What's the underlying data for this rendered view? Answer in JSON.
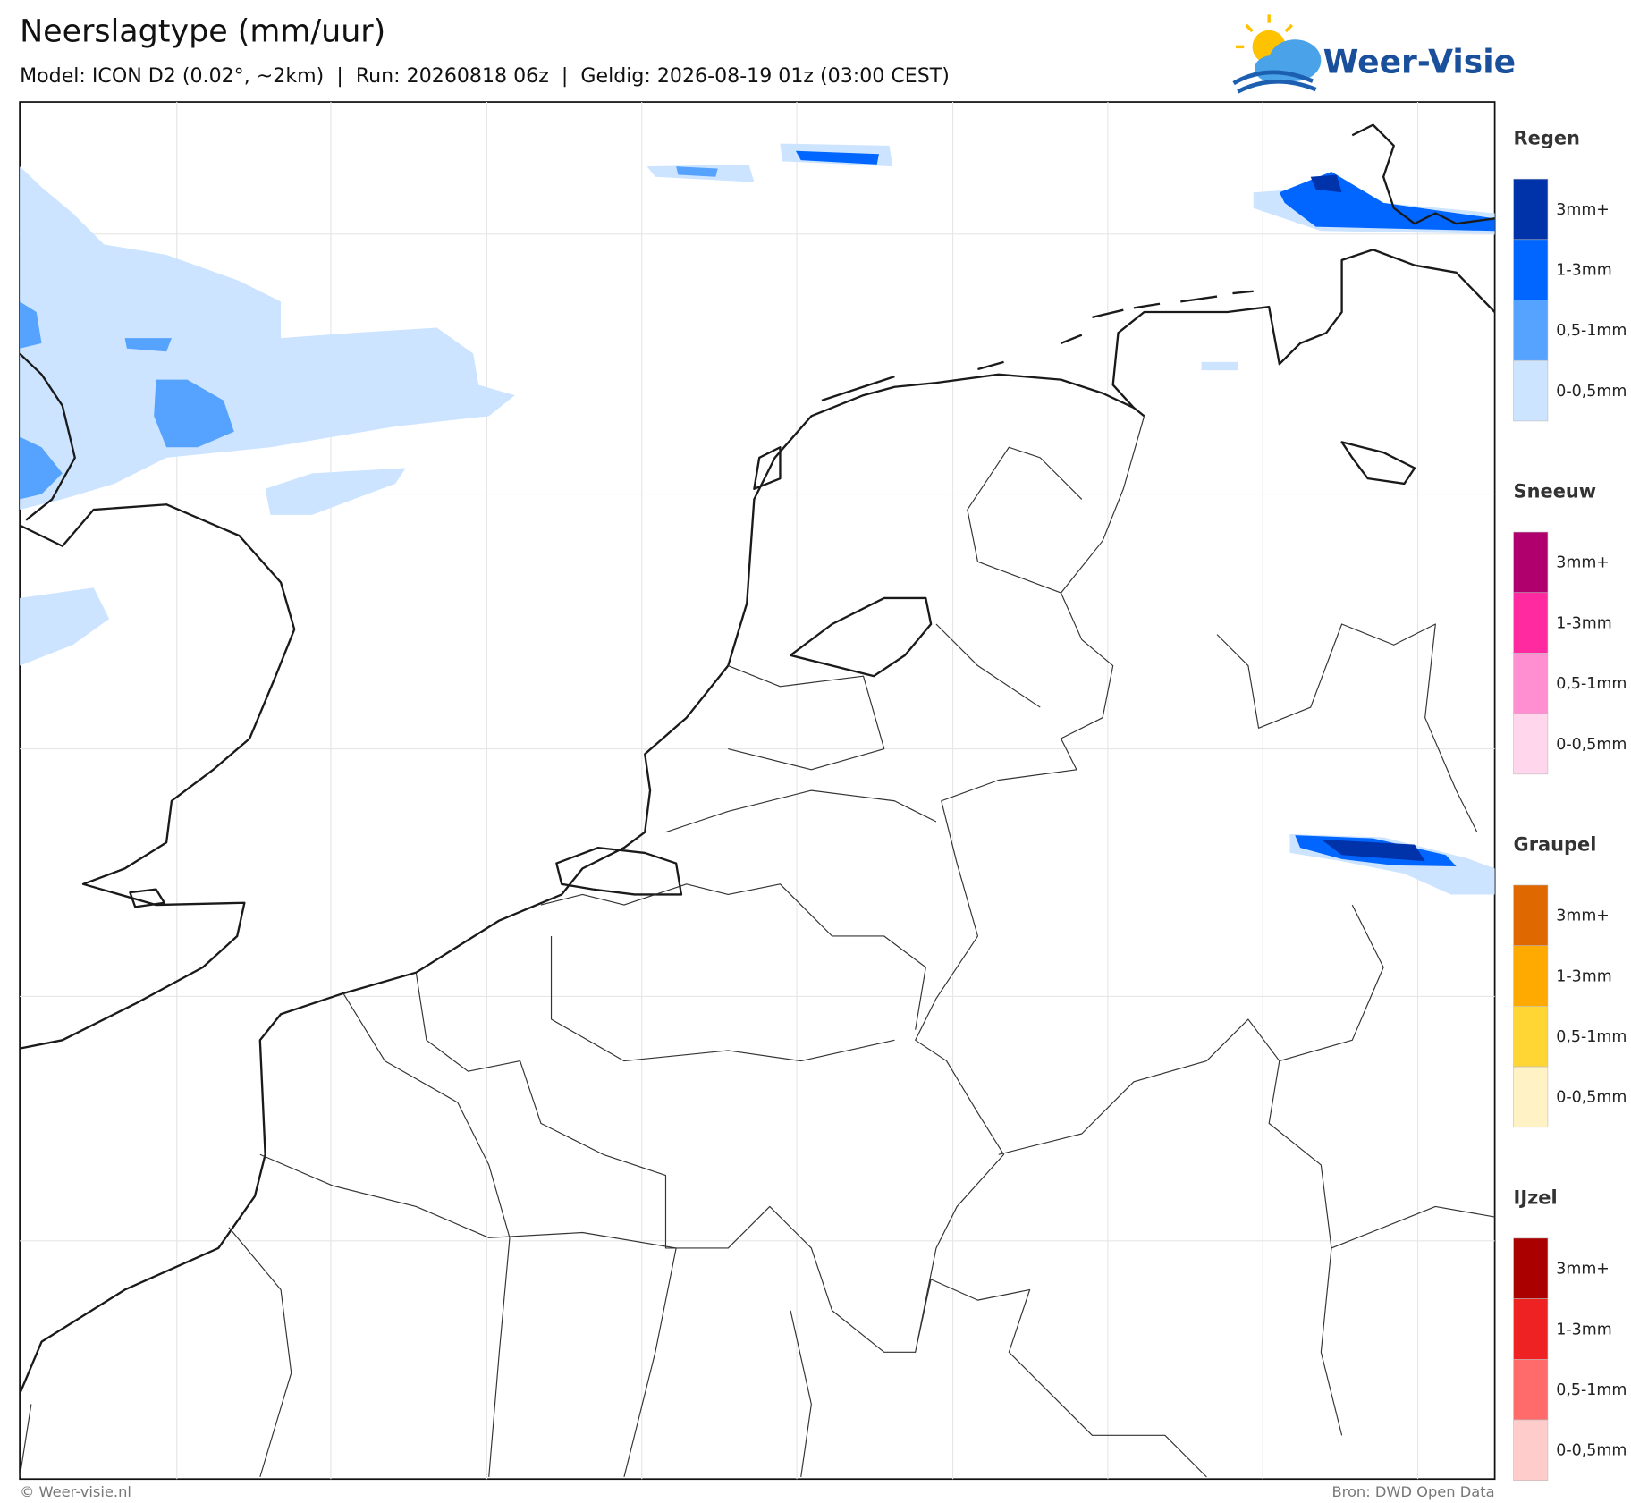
{
  "header": {
    "title": "Neerslagtype (mm/uur)",
    "subtitle": "Model: ICON D2 (0.02°, ~2km)  |  Run: 20260818 06z  |  Geldig: 2026-08-19 01z (03:00 CEST)"
  },
  "logo": {
    "text": "Weer-Visie"
  },
  "legend": [
    {
      "title": "Regen",
      "items": [
        {
          "label": "3mm+",
          "color": "#0033aa"
        },
        {
          "label": "1-3mm",
          "color": "#0066ff"
        },
        {
          "label": "0,5-1mm",
          "color": "#55a2ff"
        },
        {
          "label": "0-0,5mm",
          "color": "#cce4ff"
        }
      ]
    },
    {
      "title": "Sneeuw",
      "items": [
        {
          "label": "3mm+",
          "color": "#b0006e"
        },
        {
          "label": "1-3mm",
          "color": "#ff2aa0"
        },
        {
          "label": "0,5-1mm",
          "color": "#ff8fd0"
        },
        {
          "label": "0-0,5mm",
          "color": "#ffd6ec"
        }
      ]
    },
    {
      "title": "Graupel",
      "items": [
        {
          "label": "3mm+",
          "color": "#e06800"
        },
        {
          "label": "1-3mm",
          "color": "#ffaa00"
        },
        {
          "label": "0,5-1mm",
          "color": "#ffd633"
        },
        {
          "label": "0-0,5mm",
          "color": "#fff2c4"
        }
      ]
    },
    {
      "title": "IJzel",
      "items": [
        {
          "label": "3mm+",
          "color": "#aa0000"
        },
        {
          "label": "1-3mm",
          "color": "#ee2222"
        },
        {
          "label": "0,5-1mm",
          "color": "#ff6b6b"
        },
        {
          "label": "0-0,5mm",
          "color": "#ffcccc"
        }
      ]
    }
  ],
  "footer": {
    "left": "© Weer-visie.nl",
    "right": "Bron: DWD Open Data"
  }
}
